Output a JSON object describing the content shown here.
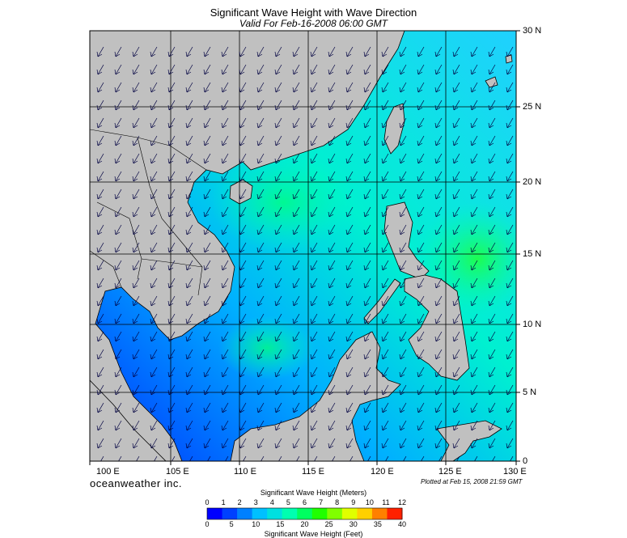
{
  "header": {
    "title": "Significant Wave Height with Wave Direction",
    "subtitle": "Valid For Feb-16-2008 06:00 GMT"
  },
  "map": {
    "lon_range": [
      100,
      130
    ],
    "lat_range": [
      0,
      30
    ],
    "lon_labels": [
      "100 E",
      "105 E",
      "110 E",
      "115 E",
      "120 E",
      "125 E",
      "130 E"
    ],
    "lat_labels": [
      "30 N",
      "25 N",
      "20 N",
      "15 N",
      "10 N",
      "5 N",
      "0"
    ],
    "grid": true,
    "land_color": "#c0c0c0",
    "arrow_direction": "toward southwest"
  },
  "footer": {
    "brand": "oceanweather inc.",
    "plotted": "Plotted at Feb 15, 2008 21:59 GMT"
  },
  "colorbar": {
    "title_top": "Significant Wave Height (Meters)",
    "title_bottom": "Significant Wave Height (Feet)",
    "meters_ticks": [
      "0",
      "1",
      "2",
      "3",
      "4",
      "5",
      "6",
      "7",
      "8",
      "9",
      "10",
      "11",
      "12"
    ],
    "feet_ticks": [
      "0",
      "5",
      "10",
      "15",
      "20",
      "25",
      "30",
      "35",
      "40"
    ],
    "colors": [
      "#0000ff",
      "#0040ff",
      "#0080ff",
      "#00c0ff",
      "#00e0e0",
      "#00ffb0",
      "#00ff60",
      "#20ff00",
      "#80ff00",
      "#e0ff00",
      "#ffd000",
      "#ff8000",
      "#ff2000"
    ]
  }
}
